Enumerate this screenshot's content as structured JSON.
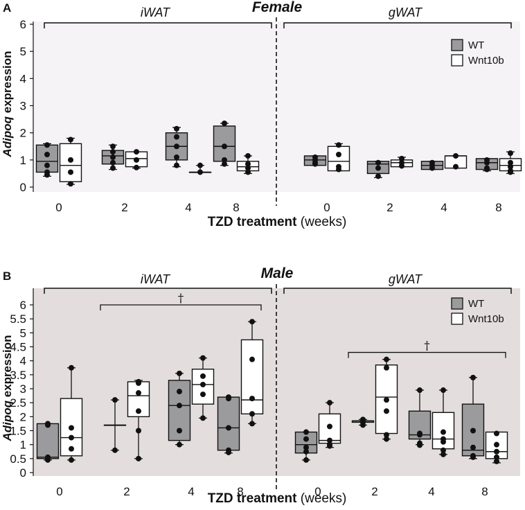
{
  "figure": {
    "colors": {
      "bg_female": "#f5f3f5",
      "bg_male": "#e3dedd",
      "wt_fill": "#9b9a9c",
      "wnt_fill": "#ffffff",
      "stroke": "#111111"
    }
  },
  "chart_data": [
    {
      "panel": "A",
      "type": "box",
      "title": "Female",
      "ylabel_italic": "Adipoq",
      "ylabel_rest": " expression",
      "xlabel_bold": "TZD treatment",
      "xlabel_rest": " (weeks)",
      "ylim": [
        0,
        6
      ],
      "yticks": [
        0,
        1,
        2,
        3,
        4,
        5,
        6
      ],
      "tissues": [
        "iWAT",
        "gWAT"
      ],
      "timepoints": [
        "0",
        "2",
        "4",
        "8"
      ],
      "legend": [
        "WT",
        "Wnt10b"
      ],
      "brackets": [],
      "groups": [
        {
          "tissue": "iWAT",
          "time": "0",
          "genotype": "WT",
          "q1": 0.55,
          "median": 0.95,
          "q3": 1.55,
          "whisker_low": 0.4,
          "whisker_high": 1.6,
          "points": [
            1.55,
            1.2,
            0.8,
            0.55,
            0.45
          ]
        },
        {
          "tissue": "iWAT",
          "time": "0",
          "genotype": "Wnt10b",
          "q1": 0.2,
          "median": 0.8,
          "q3": 1.6,
          "whisker_low": 0.1,
          "whisker_high": 1.8,
          "points": [
            1.75,
            1.0,
            0.55,
            0.12
          ]
        },
        {
          "tissue": "iWAT",
          "time": "2",
          "genotype": "WT",
          "q1": 0.85,
          "median": 1.15,
          "q3": 1.35,
          "whisker_low": 0.65,
          "whisker_high": 1.55,
          "points": [
            1.5,
            1.3,
            1.1,
            0.9,
            0.7
          ]
        },
        {
          "tissue": "iWAT",
          "time": "2",
          "genotype": "Wnt10b",
          "q1": 0.75,
          "median": 1.05,
          "q3": 1.3,
          "whisker_low": 0.7,
          "whisker_high": 1.3,
          "points": [
            1.3,
            1.0,
            0.72
          ]
        },
        {
          "tissue": "iWAT",
          "time": "4",
          "genotype": "WT",
          "q1": 1.0,
          "median": 1.5,
          "q3": 2.0,
          "whisker_low": 0.75,
          "whisker_high": 2.2,
          "points": [
            2.15,
            1.85,
            1.5,
            1.1,
            0.8
          ]
        },
        {
          "tissue": "iWAT",
          "time": "4",
          "genotype": "Wnt10b",
          "q1": 0.55,
          "median": 0.55,
          "q3": 0.55,
          "whisker_low": 0.55,
          "whisker_high": 0.8,
          "points": [
            0.8,
            0.55
          ]
        },
        {
          "tissue": "iWAT",
          "time": "8",
          "genotype": "WT",
          "q1": 0.95,
          "median": 1.5,
          "q3": 2.25,
          "whisker_low": 0.8,
          "whisker_high": 2.35,
          "points": [
            2.35,
            1.5,
            1.0,
            0.85
          ]
        },
        {
          "tissue": "iWAT",
          "time": "8",
          "genotype": "Wnt10b",
          "q1": 0.6,
          "median": 0.75,
          "q3": 0.95,
          "whisker_low": 0.5,
          "whisker_high": 1.15,
          "points": [
            1.15,
            0.85,
            0.7,
            0.55
          ]
        },
        {
          "tissue": "gWAT",
          "time": "0",
          "genotype": "WT",
          "q1": 0.8,
          "median": 1.0,
          "q3": 1.15,
          "whisker_low": 0.8,
          "whisker_high": 1.15,
          "points": [
            1.1,
            1.0,
            0.9,
            0.85
          ]
        },
        {
          "tissue": "gWAT",
          "time": "0",
          "genotype": "Wnt10b",
          "q1": 0.6,
          "median": 0.95,
          "q3": 1.5,
          "whisker_low": 0.6,
          "whisker_high": 1.6,
          "points": [
            1.55,
            1.2,
            0.75,
            0.65
          ]
        },
        {
          "tissue": "gWAT",
          "time": "2",
          "genotype": "WT",
          "q1": 0.5,
          "median": 0.85,
          "q3": 0.95,
          "whisker_low": 0.35,
          "whisker_high": 0.95,
          "points": [
            0.9,
            0.7,
            0.4
          ]
        },
        {
          "tissue": "gWAT",
          "time": "2",
          "genotype": "Wnt10b",
          "q1": 0.75,
          "median": 0.9,
          "q3": 1.0,
          "whisker_low": 0.75,
          "whisker_high": 1.1,
          "points": [
            1.05,
            0.9,
            0.78
          ]
        },
        {
          "tissue": "gWAT",
          "time": "4",
          "genotype": "WT",
          "q1": 0.65,
          "median": 0.8,
          "q3": 0.95,
          "whisker_low": 0.65,
          "whisker_high": 0.95,
          "points": [
            0.9,
            0.8,
            0.7
          ]
        },
        {
          "tissue": "gWAT",
          "time": "4",
          "genotype": "Wnt10b",
          "q1": 0.7,
          "median": 1.15,
          "q3": 1.15,
          "whisker_low": 0.7,
          "whisker_high": 1.15,
          "points": [
            1.15,
            0.75
          ]
        },
        {
          "tissue": "gWAT",
          "time": "8",
          "genotype": "WT",
          "q1": 0.65,
          "median": 0.9,
          "q3": 1.05,
          "whisker_low": 0.6,
          "whisker_high": 1.05,
          "points": [
            1.0,
            0.9,
            0.7,
            0.65
          ]
        },
        {
          "tissue": "gWAT",
          "time": "8",
          "genotype": "Wnt10b",
          "q1": 0.6,
          "median": 0.8,
          "q3": 1.05,
          "whisker_low": 0.5,
          "whisker_high": 1.3,
          "points": [
            1.25,
            0.9,
            0.75,
            0.6,
            0.55
          ]
        }
      ]
    },
    {
      "panel": "B",
      "type": "box",
      "title": "Male",
      "ylabel_italic": "Adipoq",
      "ylabel_rest": " expression",
      "xlabel_bold": "TZD treatment",
      "xlabel_rest": " (weeks)",
      "ylim": [
        0,
        6.5
      ],
      "yticks": [
        0,
        0.5,
        1,
        1.5,
        2,
        2.5,
        3,
        3.5,
        4,
        4.5,
        5,
        5.5,
        6
      ],
      "tissues": [
        "iWAT",
        "gWAT"
      ],
      "timepoints": [
        "0",
        "2",
        "4",
        "8"
      ],
      "legend": [
        "WT",
        "Wnt10b"
      ],
      "brackets": [
        {
          "tissue": "iWAT",
          "from_time": "2",
          "to_time": "8",
          "value": 6.0,
          "label": "†"
        },
        {
          "tissue": "gWAT",
          "from_time": "2",
          "to_time": "8",
          "value": 4.3,
          "label": "†"
        }
      ],
      "groups": [
        {
          "tissue": "iWAT",
          "time": "0",
          "genotype": "WT",
          "q1": 0.5,
          "median": 0.55,
          "q3": 1.75,
          "whisker_low": 0.45,
          "whisker_high": 1.75,
          "points": [
            1.75,
            1.7,
            0.55,
            0.45
          ]
        },
        {
          "tissue": "iWAT",
          "time": "0",
          "genotype": "Wnt10b",
          "q1": 0.6,
          "median": 1.25,
          "q3": 2.65,
          "whisker_low": 0.45,
          "whisker_high": 3.75,
          "points": [
            3.75,
            1.6,
            1.25,
            0.85,
            0.45
          ]
        },
        {
          "tissue": "iWAT",
          "time": "2",
          "genotype": "WT",
          "q1": 1.7,
          "median": 1.7,
          "q3": 1.7,
          "whisker_low": 0.8,
          "whisker_high": 2.6,
          "points": [
            2.6,
            0.8
          ]
        },
        {
          "tissue": "iWAT",
          "time": "2",
          "genotype": "Wnt10b",
          "q1": 2.0,
          "median": 2.75,
          "q3": 3.25,
          "whisker_low": 0.5,
          "whisker_high": 3.3,
          "points": [
            3.25,
            3.2,
            2.85,
            2.2,
            1.5,
            0.5
          ]
        },
        {
          "tissue": "iWAT",
          "time": "4",
          "genotype": "WT",
          "q1": 1.15,
          "median": 2.4,
          "q3": 3.3,
          "whisker_low": 1.0,
          "whisker_high": 3.55,
          "points": [
            3.55,
            2.9,
            2.4,
            1.5,
            1.0
          ]
        },
        {
          "tissue": "iWAT",
          "time": "4",
          "genotype": "Wnt10b",
          "q1": 2.45,
          "median": 3.15,
          "q3": 3.7,
          "whisker_low": 1.95,
          "whisker_high": 4.1,
          "points": [
            4.1,
            3.45,
            3.15,
            2.8,
            1.95
          ]
        },
        {
          "tissue": "iWAT",
          "time": "8",
          "genotype": "WT",
          "q1": 0.8,
          "median": 1.6,
          "q3": 2.7,
          "whisker_low": 0.7,
          "whisker_high": 2.7,
          "points": [
            2.7,
            2.65,
            1.6,
            0.8,
            0.72
          ]
        },
        {
          "tissue": "iWAT",
          "time": "8",
          "genotype": "Wnt10b",
          "q1": 2.1,
          "median": 2.6,
          "q3": 4.75,
          "whisker_low": 1.75,
          "whisker_high": 5.4,
          "points": [
            5.4,
            4.05,
            2.65,
            2.1,
            1.75
          ]
        },
        {
          "tissue": "gWAT",
          "time": "0",
          "genotype": "WT",
          "q1": 0.7,
          "median": 1.0,
          "q3": 1.45,
          "whisker_low": 0.45,
          "whisker_high": 1.45,
          "points": [
            1.45,
            1.2,
            0.9,
            0.75,
            0.45
          ]
        },
        {
          "tissue": "gWAT",
          "time": "0",
          "genotype": "Wnt10b",
          "q1": 1.05,
          "median": 1.15,
          "q3": 2.1,
          "whisker_low": 0.9,
          "whisker_high": 2.5,
          "points": [
            2.5,
            1.65,
            1.15,
            1.0,
            0.95
          ]
        },
        {
          "tissue": "gWAT",
          "time": "2",
          "genotype": "WT",
          "q1": 1.8,
          "median": 1.85,
          "q3": 1.85,
          "whisker_low": 1.7,
          "whisker_high": 1.9,
          "points": [
            1.9,
            1.8,
            1.7
          ]
        },
        {
          "tissue": "gWAT",
          "time": "2",
          "genotype": "Wnt10b",
          "q1": 1.4,
          "median": 2.7,
          "q3": 3.85,
          "whisker_low": 1.2,
          "whisker_high": 4.05,
          "points": [
            4.05,
            3.75,
            2.6,
            2.2,
            1.35,
            1.2
          ]
        },
        {
          "tissue": "gWAT",
          "time": "4",
          "genotype": "WT",
          "q1": 1.2,
          "median": 1.35,
          "q3": 2.2,
          "whisker_low": 1.0,
          "whisker_high": 2.95,
          "points": [
            2.95,
            1.4,
            1.35,
            1.05,
            0.98
          ]
        },
        {
          "tissue": "gWAT",
          "time": "4",
          "genotype": "Wnt10b",
          "q1": 0.85,
          "median": 1.2,
          "q3": 2.15,
          "whisker_low": 0.65,
          "whisker_high": 2.95,
          "points": [
            2.95,
            1.45,
            1.2,
            1.1,
            0.8,
            0.65
          ]
        },
        {
          "tissue": "gWAT",
          "time": "8",
          "genotype": "WT",
          "q1": 0.6,
          "median": 0.8,
          "q3": 2.45,
          "whisker_low": 0.5,
          "whisker_high": 3.4,
          "points": [
            3.4,
            1.5,
            0.9,
            0.6,
            0.55
          ]
        },
        {
          "tissue": "gWAT",
          "time": "8",
          "genotype": "Wnt10b",
          "q1": 0.5,
          "median": 0.75,
          "q3": 1.45,
          "whisker_low": 0.35,
          "whisker_high": 1.45,
          "points": [
            1.4,
            1.0,
            0.75,
            0.55,
            0.4
          ]
        }
      ]
    }
  ]
}
